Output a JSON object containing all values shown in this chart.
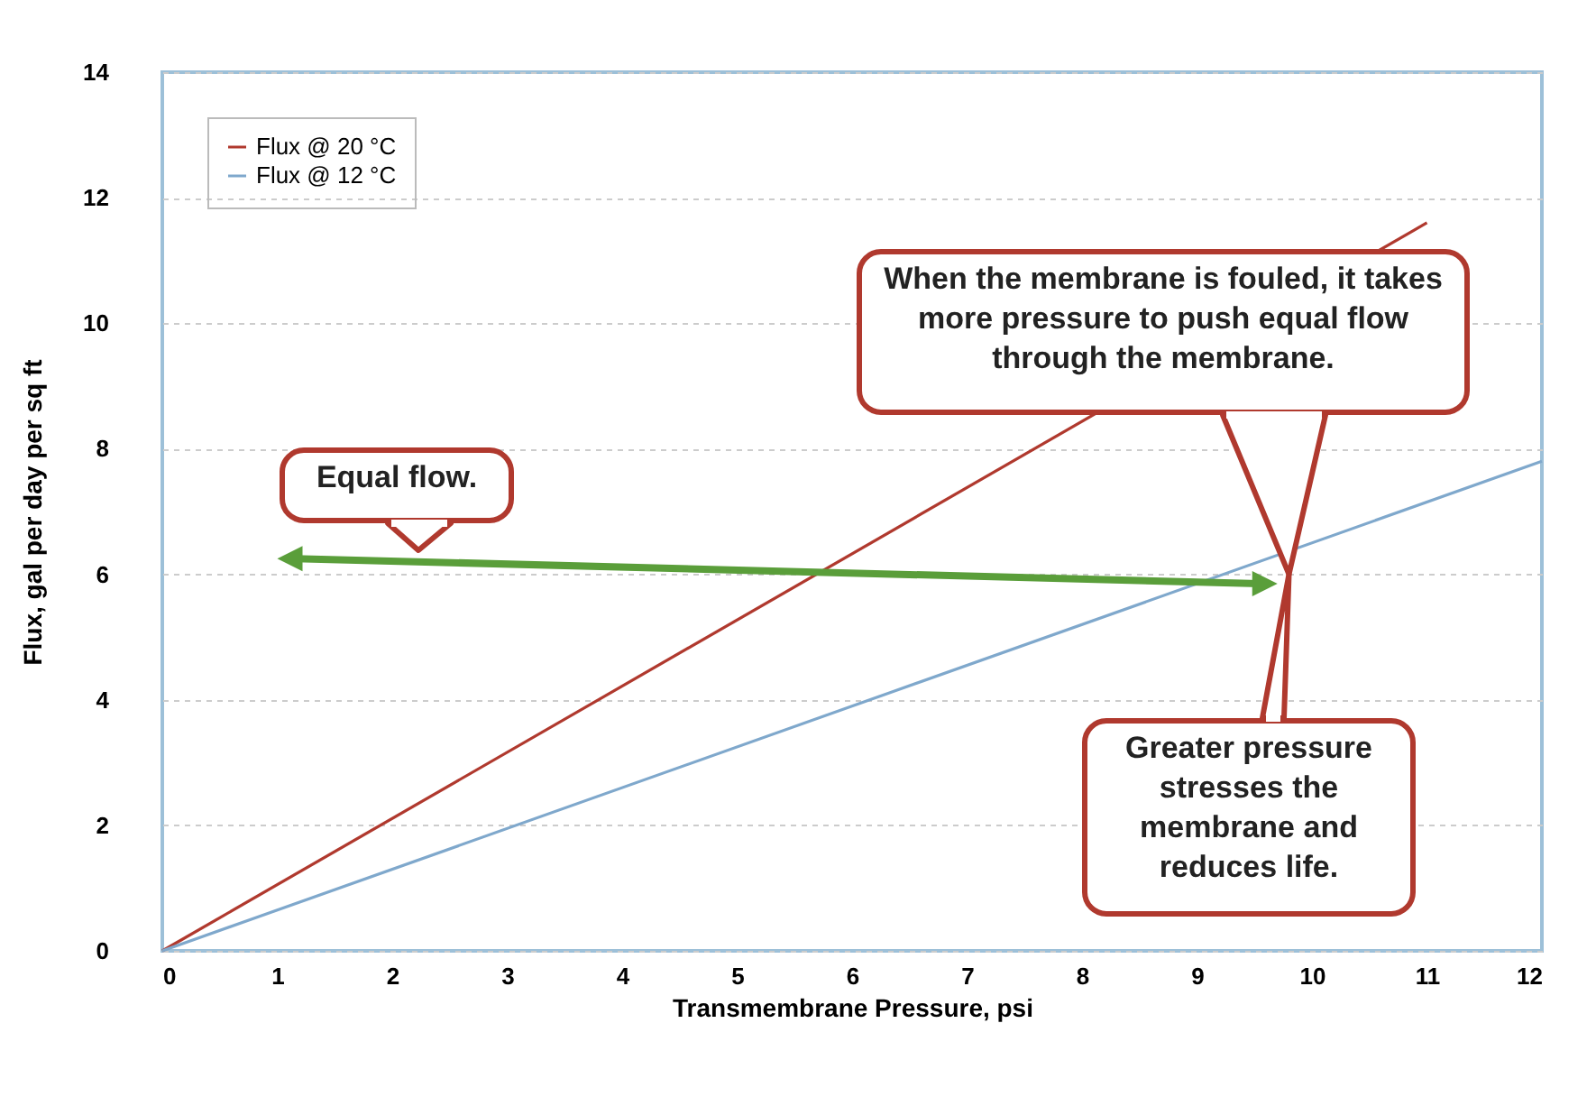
{
  "chart_data": {
    "type": "line",
    "xlabel": "Transmembrane Pressure, psi",
    "ylabel": "Flux, gal per day per sq ft",
    "xlim": [
      0,
      12
    ],
    "ylim": [
      0,
      14
    ],
    "xticks": [
      0,
      1,
      2,
      3,
      4,
      5,
      6,
      7,
      8,
      9,
      10,
      11,
      12
    ],
    "yticks": [
      0,
      2,
      4,
      6,
      8,
      10,
      12,
      14
    ],
    "grid": "y",
    "legend": "top left",
    "line_style": "solid",
    "series": [
      {
        "name": "Flux @ 20 °C",
        "color": "#b0392e",
        "x": [
          0,
          11
        ],
        "values": [
          0,
          11.6
        ]
      },
      {
        "name": "Flux @ 12 °C",
        "color": "#7fa8cc",
        "x": [
          0,
          12
        ],
        "values": [
          0,
          7.8
        ]
      }
    ],
    "annotations": [
      "Equal flow.",
      "When the membrane is fouled, it takes more pressure to push equal flow through the membrane.",
      "Greater pressure stresses the membrane and reduces life."
    ]
  }
}
